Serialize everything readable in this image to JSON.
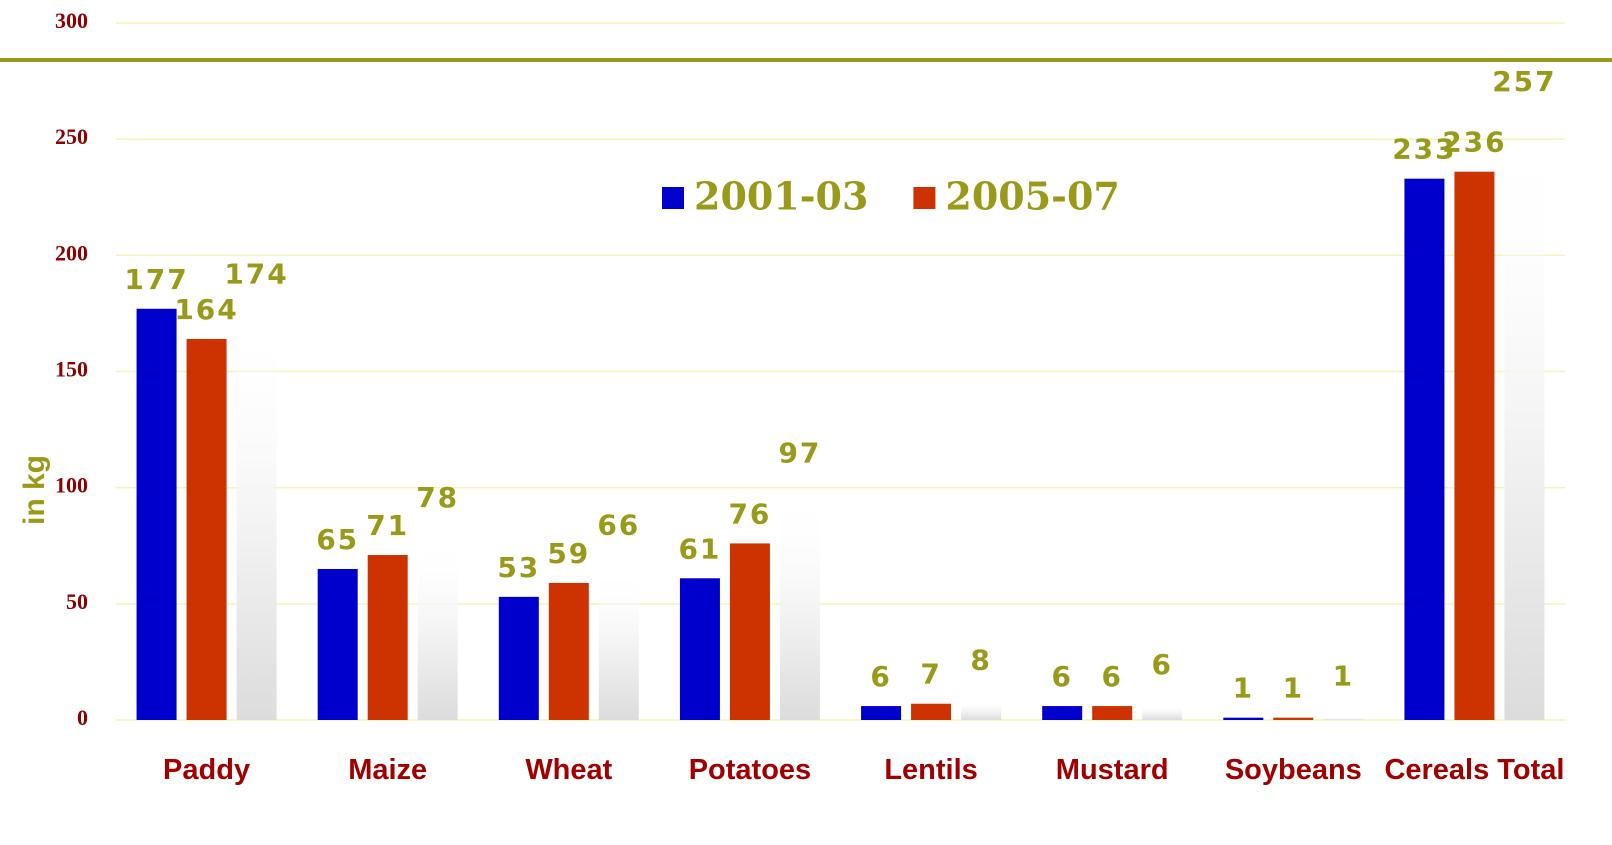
{
  "chart_data": {
    "type": "bar",
    "categories": [
      "Paddy",
      "Maize",
      "Wheat",
      "Potatoes",
      "Lentils",
      "Mustard",
      "Soybeans",
      "Cereals Total"
    ],
    "series": [
      {
        "name": "2001-03",
        "color": "#0000cc",
        "values": [
          177,
          65,
          53,
          61,
          6,
          6,
          1,
          233
        ]
      },
      {
        "name": "2005-07",
        "color": "#cc3300",
        "values": [
          164,
          71,
          59,
          76,
          7,
          6,
          1,
          236
        ]
      },
      {
        "color": "#dcdcdc",
        "values": [
          174,
          78,
          66,
          97,
          8,
          6,
          1,
          257
        ]
      }
    ],
    "ylabel": "in kg",
    "ylim": [
      0,
      300
    ],
    "yticks": [
      0,
      50,
      100,
      150,
      200,
      250,
      300
    ],
    "grid": true
  }
}
